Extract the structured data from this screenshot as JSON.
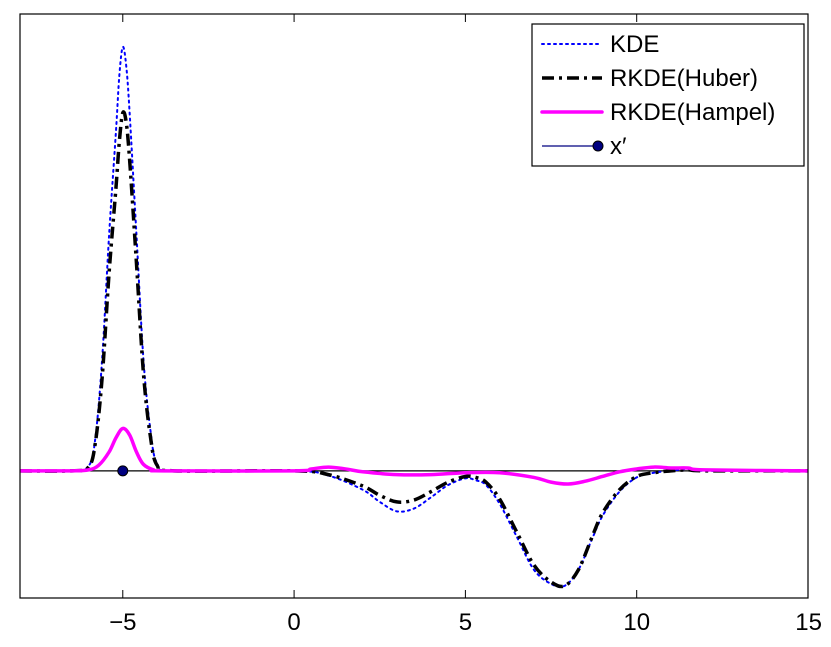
{
  "chart_data": {
    "type": "line",
    "title": "",
    "xlabel": "",
    "ylabel": "",
    "xlim": [
      -8,
      15
    ],
    "ylim": [
      -1.35,
      4.85
    ],
    "x_ticks": [
      -5,
      0,
      5,
      10,
      15
    ],
    "x_tick_labels": [
      "−5",
      "0",
      "5",
      "10",
      "15"
    ],
    "y_ticks": [],
    "grid": false,
    "legend_position": "top-right",
    "baseline": 0,
    "series": [
      {
        "name": "KDE",
        "style": "dotted",
        "color": "#0000ff",
        "x": [
          -8,
          -6.5,
          -6,
          -5.8,
          -5.6,
          -5.4,
          -5.2,
          -5.1,
          -5,
          -4.9,
          -4.8,
          -4.6,
          -4.4,
          -4.2,
          -4,
          -3.5,
          0,
          1,
          2,
          2.5,
          3,
          3.5,
          4,
          4.5,
          5,
          5.3,
          5.6,
          6,
          6.5,
          7,
          7.5,
          7.9,
          8.3,
          8.7,
          9,
          9.5,
          10,
          10.5,
          11,
          11.5,
          12,
          15
        ],
        "y": [
          0,
          0,
          0.05,
          0.35,
          1.2,
          2.5,
          3.6,
          4.2,
          4.5,
          4.3,
          3.8,
          2.5,
          1.2,
          0.45,
          0.08,
          0,
          0,
          -0.05,
          -0.2,
          -0.33,
          -0.43,
          -0.4,
          -0.28,
          -0.15,
          -0.08,
          -0.1,
          -0.15,
          -0.35,
          -0.7,
          -1.05,
          -1.2,
          -1.22,
          -1.05,
          -0.72,
          -0.48,
          -0.22,
          -0.07,
          -0.02,
          0,
          0.02,
          0,
          0
        ]
      },
      {
        "name": "RKDE(Huber)",
        "style": "dashdot",
        "color": "#000000",
        "x": [
          -8,
          -6.5,
          -6,
          -5.8,
          -5.6,
          -5.4,
          -5.2,
          -5.1,
          -5,
          -4.9,
          -4.8,
          -4.6,
          -4.4,
          -4.2,
          -4,
          -3.5,
          0,
          1,
          2,
          2.5,
          3,
          3.5,
          4,
          4.5,
          5,
          5.3,
          5.6,
          6,
          6.5,
          7,
          7.5,
          7.9,
          8.3,
          8.7,
          9,
          9.5,
          10,
          10.5,
          11,
          11.5,
          12,
          15
        ],
        "y": [
          0,
          0,
          0.04,
          0.3,
          1.0,
          2.1,
          3.0,
          3.5,
          3.8,
          3.7,
          3.3,
          2.2,
          1.05,
          0.38,
          0.06,
          0,
          0,
          -0.04,
          -0.16,
          -0.26,
          -0.33,
          -0.31,
          -0.22,
          -0.12,
          -0.06,
          -0.07,
          -0.12,
          -0.3,
          -0.65,
          -1.0,
          -1.18,
          -1.22,
          -1.05,
          -0.7,
          -0.45,
          -0.2,
          -0.06,
          -0.02,
          0,
          0.01,
          0,
          0
        ]
      },
      {
        "name": "RKDE(Hampel)",
        "style": "solid",
        "color": "#ff00ff",
        "x": [
          -8,
          -6.5,
          -6,
          -5.7,
          -5.4,
          -5.2,
          -5,
          -4.8,
          -4.6,
          -4.4,
          -4.1,
          -3.8,
          0,
          0.5,
          1,
          1.5,
          2,
          3,
          4,
          5,
          6,
          7,
          7.5,
          8,
          8.5,
          9,
          9.5,
          10,
          10.5,
          11,
          11.5,
          12,
          15
        ],
        "y": [
          0,
          0,
          0.01,
          0.06,
          0.2,
          0.35,
          0.45,
          0.38,
          0.2,
          0.07,
          0.01,
          0,
          0,
          0.02,
          0.04,
          0.02,
          -0.01,
          -0.04,
          -0.04,
          -0.02,
          -0.02,
          -0.07,
          -0.12,
          -0.14,
          -0.11,
          -0.06,
          -0.01,
          0.02,
          0.04,
          0.03,
          0.03,
          0.01,
          0
        ]
      }
    ],
    "points": [
      {
        "name": "x′",
        "x": -5,
        "y": 0,
        "color": "#000080",
        "marker": "filled-circle"
      }
    ]
  }
}
